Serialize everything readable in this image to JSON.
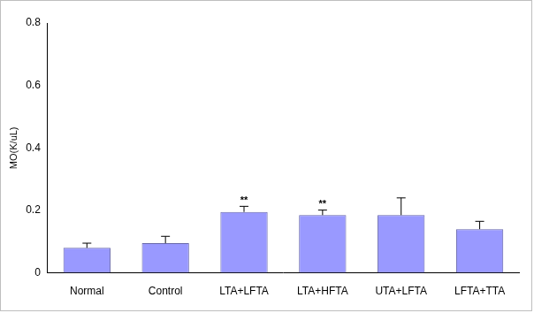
{
  "chart_data": {
    "type": "bar",
    "y_label": "MO(K/uL)",
    "categories": [
      "Normal",
      "Control",
      "LTA+LFTA",
      "LTA+HFTA",
      "UTA+LFTA",
      "LFTA+TTA"
    ],
    "values": [
      0.08,
      0.095,
      0.195,
      0.185,
      0.185,
      0.14
    ],
    "errors": [
      0.015,
      0.022,
      0.018,
      0.016,
      0.055,
      0.025
    ],
    "annotations": [
      null,
      null,
      "**",
      "**",
      null,
      null
    ],
    "color": "#9999ff",
    "ylim": [
      0,
      0.8
    ],
    "yticks": [
      0,
      0.2,
      0.4,
      0.6,
      0.8
    ],
    "grid": false
  }
}
